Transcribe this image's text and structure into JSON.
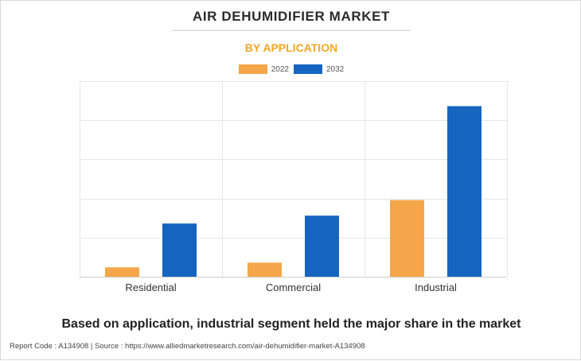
{
  "header": {
    "title": "AIR DEHUMIDIFIER MARKET",
    "subtitle": "BY APPLICATION"
  },
  "caption": "Based on application, industrial segment held the major share in the market",
  "footer": "Report Code : A134908  |  Source : https://www.alliedmarketresearch.com/air-dehumidifier-market-A134908",
  "colors": {
    "series_2022": "#f5a64a",
    "series_2032": "#1565c0",
    "subtitle": "#f5a623",
    "grid": "#e6e6e6"
  },
  "chart_data": {
    "type": "bar",
    "title": "BY APPLICATION",
    "categories": [
      "Residential",
      "Commercial",
      "Industrial"
    ],
    "series": [
      {
        "name": "2022",
        "values": [
          0.6,
          0.9,
          4.9
        ]
      },
      {
        "name": "2032",
        "values": [
          3.4,
          3.9,
          10.9
        ]
      }
    ],
    "ylim": [
      0,
      12.5
    ],
    "y_ticks": [
      0,
      2.5,
      5,
      7.5,
      10,
      12.5
    ],
    "y_tick_labels_shown": false,
    "grid": true,
    "legend": "top-center"
  }
}
